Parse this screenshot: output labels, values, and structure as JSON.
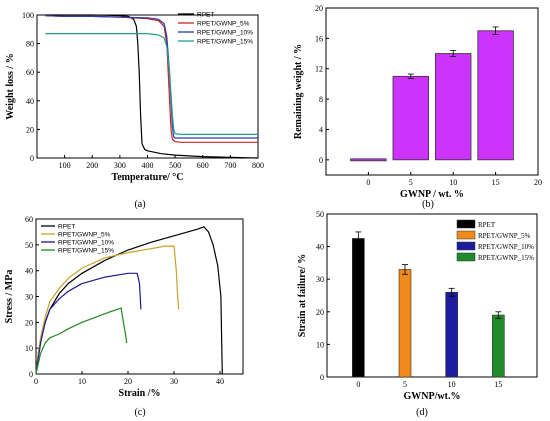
{
  "chart_data": [
    {
      "panel": "(a)",
      "type": "line",
      "xlabel": "Temperature/ °C",
      "ylabel": "Weight loss / %",
      "xlim": [
        0,
        800
      ],
      "ylim": [
        0,
        100
      ],
      "xticks": [
        100,
        200,
        300,
        400,
        500,
        600,
        700,
        800
      ],
      "yticks": [
        0,
        20,
        40,
        60,
        80,
        100
      ],
      "legend": "top-right",
      "series": [
        {
          "name": "RPET",
          "color": "#000000",
          "x": [
            30,
            100,
            200,
            260,
            300,
            330,
            350,
            360,
            365,
            370,
            375,
            380,
            390,
            400,
            450,
            500,
            600,
            800
          ],
          "y": [
            100,
            100,
            100,
            99.8,
            99.5,
            99,
            97,
            92,
            80,
            60,
            30,
            10,
            6,
            5,
            3,
            2,
            1,
            0
          ]
        },
        {
          "name": "RPET/GWNP_5%",
          "color": "#cc2222",
          "x": [
            30,
            100,
            200,
            300,
            400,
            440,
            460,
            470,
            475,
            480,
            485,
            490,
            500,
            520,
            600,
            800
          ],
          "y": [
            99.5,
            99,
            99,
            98.5,
            97.5,
            96,
            92,
            80,
            60,
            40,
            20,
            13,
            11.5,
            11,
            11,
            11
          ]
        },
        {
          "name": "RPET/GWNP_10%",
          "color": "#2a3faa",
          "x": [
            30,
            100,
            200,
            300,
            400,
            440,
            460,
            470,
            478,
            485,
            490,
            495,
            500,
            520,
            600,
            800
          ],
          "y": [
            99.5,
            99,
            99,
            98.5,
            98,
            97,
            94,
            85,
            65,
            40,
            22,
            15,
            14,
            14,
            14,
            14
          ]
        },
        {
          "name": "RPET/GWNP_15%",
          "color": "#1fa090",
          "x": [
            30,
            100,
            200,
            300,
            400,
            440,
            460,
            470,
            480,
            485,
            490,
            495,
            500,
            520,
            600,
            800
          ],
          "y": [
            87,
            87,
            87,
            87,
            87,
            86,
            84,
            78,
            60,
            45,
            30,
            20,
            17,
            16.5,
            16.5,
            16.5
          ]
        }
      ]
    },
    {
      "panel": "(b)",
      "type": "bar",
      "xlabel": "GWNP / wt. %",
      "ylabel": "Remaining weight / %",
      "xlim": [
        -5,
        20
      ],
      "ylim": [
        -2,
        20
      ],
      "xticks": [
        0,
        5,
        10,
        15,
        20
      ],
      "yticks": [
        0,
        4,
        8,
        12,
        16,
        20
      ],
      "bar_color": "#cc33ff",
      "x": [
        0,
        5,
        10,
        15
      ],
      "values": [
        0,
        11,
        14,
        17
      ],
      "errors": [
        0,
        0.3,
        0.4,
        0.5
      ]
    },
    {
      "panel": "(c)",
      "type": "line",
      "xlabel": "Strain /%",
      "ylabel": "Stress / MPa",
      "xlim": [
        0,
        45
      ],
      "ylim": [
        0,
        60
      ],
      "xticks": [
        0,
        10,
        20,
        30,
        40
      ],
      "yticks": [
        0,
        10,
        20,
        30,
        40,
        50,
        60
      ],
      "legend": "top-left",
      "series": [
        {
          "name": "RPET",
          "color": "#000000",
          "x": [
            0,
            0.5,
            1,
            2,
            3,
            5,
            7,
            10,
            15,
            20,
            25,
            30,
            35,
            36.5,
            37.5,
            38.5,
            39.5,
            40.2,
            40.4,
            40.5
          ],
          "y": [
            0,
            8,
            13,
            20,
            25,
            31,
            35,
            39,
            44,
            48,
            51,
            53.5,
            56,
            57,
            55,
            50,
            42,
            30,
            10,
            0
          ]
        },
        {
          "name": "RPET/GWNP_5%",
          "color": "#c9a227",
          "x": [
            0,
            0.5,
            1,
            2,
            3,
            5,
            7,
            10,
            15,
            20,
            25,
            28,
            30,
            30.5,
            30.8,
            31
          ],
          "y": [
            0,
            8,
            14,
            22,
            28,
            33,
            37,
            41,
            45,
            47,
            48.5,
            49.5,
            49.5,
            40,
            30,
            25
          ]
        },
        {
          "name": "RPET/GWNP_10%",
          "color": "#1c1c8c",
          "x": [
            0,
            1,
            2,
            3,
            5,
            7,
            10,
            15,
            20,
            22,
            22.5,
            22.8
          ],
          "y": [
            0,
            12,
            20,
            25,
            29,
            32,
            35,
            37.5,
            39,
            39,
            35,
            25
          ]
        },
        {
          "name": "RPET/GWNP_15%",
          "color": "#228b22",
          "x": [
            0,
            1,
            2,
            3,
            5,
            7,
            10,
            13,
            16,
            18.5,
            19,
            19.5,
            19.7
          ],
          "y": [
            0,
            8,
            12,
            14,
            15.5,
            17.5,
            20,
            22,
            24,
            25.5,
            20,
            15,
            12
          ]
        }
      ]
    },
    {
      "panel": "(d)",
      "type": "bar",
      "xlabel": "GWNP/wt.%",
      "ylabel": "Strain at failure/ %",
      "ylim": [
        0,
        50
      ],
      "yticks": [
        0,
        10,
        20,
        30,
        40,
        50
      ],
      "categories": [
        "0",
        "5",
        "10",
        "15"
      ],
      "values": [
        42.5,
        33,
        26,
        19
      ],
      "errors": [
        2,
        1.5,
        1.2,
        1
      ],
      "legend": "top-right",
      "series": [
        {
          "name": "RPET",
          "color": "#000000"
        },
        {
          "name": "RPET/GWNP_5%",
          "color": "#f08a1d"
        },
        {
          "name": "RPET/GWNP_10%",
          "color": "#1c1c9c"
        },
        {
          "name": "RPET/GWNP_15%",
          "color": "#1f8a2a"
        }
      ]
    }
  ]
}
